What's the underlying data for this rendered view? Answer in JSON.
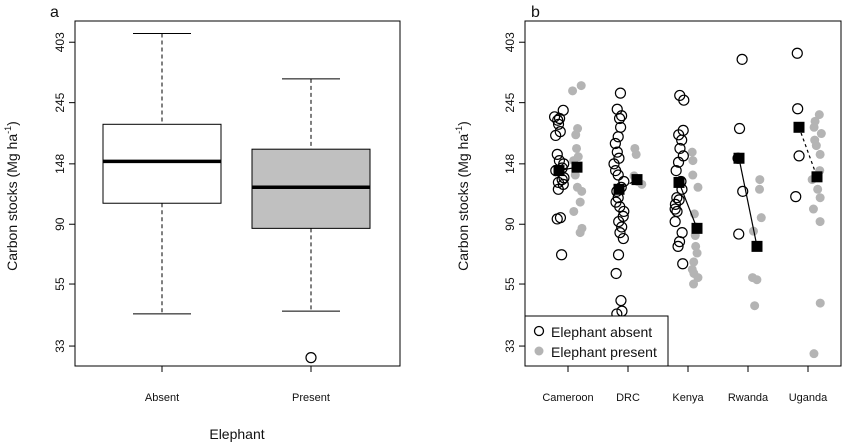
{
  "chart_data": [
    {
      "panel": "a",
      "type": "box",
      "ylabel": "Carbon stocks (Mg ha",
      "ylabel_sup": "-1",
      "ylabel_close": ")",
      "xlabel": "Elephant",
      "log_scale_y": true,
      "yticks": [
        33,
        55,
        90,
        148,
        245,
        403
      ],
      "ylim": [
        28,
        480
      ],
      "categories": [
        "Absent",
        "Present"
      ],
      "colors": {
        "Absent": "#ffffff",
        "Present": "#c0c0c0"
      },
      "boxes": [
        {
          "label": "Absent",
          "whisker_low": 43,
          "q1": 107,
          "median": 151,
          "q3": 205,
          "whisker_high": 433,
          "outliers": []
        },
        {
          "label": "Present",
          "whisker_low": 44,
          "q1": 87,
          "median": 122,
          "q3": 167,
          "whisker_high": 298,
          "outliers": [
            30
          ]
        }
      ]
    },
    {
      "panel": "b",
      "type": "scatter",
      "ylabel": "Carbon stocks (Mg ha",
      "ylabel_sup": "-1",
      "ylabel_close": ")",
      "log_scale_y": true,
      "yticks": [
        33,
        55,
        90,
        148,
        245,
        403
      ],
      "ylim": [
        28,
        480
      ],
      "categories": [
        "Cameroon",
        "DRC",
        "Kenya",
        "Rwanda",
        "Uganda"
      ],
      "legend": {
        "position": "bottom-left",
        "absent": "Elephant absent",
        "present": "Elephant present"
      },
      "absent_color": "#000000",
      "present_color": "#b4b4b4",
      "absent_points": [
        [
          230,
          218,
          215,
          212,
          205,
          193,
          187,
          160,
          152,
          148,
          143,
          140,
          132,
          130,
          127,
          125,
          120,
          95,
          94,
          70
        ],
        [
          265,
          232,
          220,
          215,
          200,
          185,
          175,
          163,
          155,
          148,
          140,
          135,
          128,
          122,
          118,
          112,
          108,
          104,
          100,
          96,
          92,
          88,
          84,
          80,
          70,
          60,
          48,
          44,
          43
        ],
        [
          260,
          250,
          195,
          188,
          180,
          168,
          158,
          150,
          140,
          128,
          120,
          112,
          110,
          106,
          102,
          100,
          92,
          84,
          78,
          75,
          65
        ],
        [
          350,
          198,
          155,
          118,
          83
        ],
        [
          368,
          233,
          158,
          113
        ]
      ],
      "present_points": [
        [
          282,
          270,
          198,
          188,
          168,
          157,
          152,
          135,
          122,
          118,
          108,
          100,
          87,
          84
        ],
        [
          168,
          160,
          134,
          128,
          125
        ],
        [
          163,
          152,
          135,
          122,
          98,
          88,
          82,
          75,
          71,
          66,
          62,
          60,
          58,
          55
        ],
        [
          130,
          120,
          95,
          85,
          58,
          57,
          46
        ],
        [
          222,
          210,
          200,
          190,
          180,
          172,
          160,
          140,
          130,
          120,
          112,
          102,
          92,
          47,
          31
        ]
      ],
      "absent_means": [
        140,
        120,
        127,
        155,
        200
      ],
      "present_means": [
        144,
        130,
        87,
        75,
        133
      ],
      "mean_line_style": [
        "solid",
        "dashed",
        "solid",
        "solid",
        "dashed"
      ]
    }
  ],
  "panel_labels": [
    "a",
    "b"
  ]
}
